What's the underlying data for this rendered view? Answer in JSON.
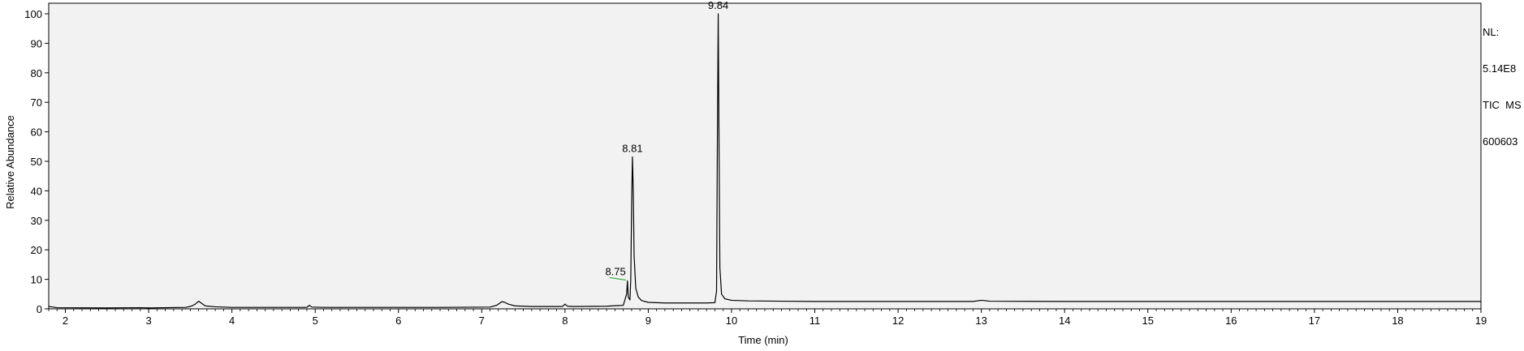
{
  "chart_data": {
    "type": "line",
    "title": "",
    "xlabel": "Time (min)",
    "ylabel": "Relative Abundance",
    "xlim": [
      1.8,
      19.0
    ],
    "ylim": [
      0,
      100
    ],
    "x_ticks": [
      2,
      3,
      4,
      5,
      6,
      7,
      8,
      9,
      10,
      11,
      12,
      13,
      14,
      15,
      16,
      17,
      18,
      19
    ],
    "y_ticks": [
      0,
      10,
      20,
      30,
      40,
      50,
      60,
      70,
      80,
      90,
      100
    ],
    "grid": false,
    "series": [
      {
        "x": [
          1.8,
          1.9,
          2.5,
          2.9,
          3.0,
          3.45,
          3.52,
          3.56,
          3.6,
          3.63,
          3.68,
          3.8,
          4.0,
          4.9,
          4.93,
          4.96,
          5.1,
          6.5,
          7.1,
          7.18,
          7.24,
          7.27,
          7.32,
          7.4,
          7.6,
          7.97,
          8.0,
          8.03,
          8.1,
          8.5,
          8.7,
          8.74,
          8.75,
          8.76,
          8.78,
          8.79,
          8.8,
          8.81,
          8.82,
          8.83,
          8.85,
          8.88,
          8.92,
          9.0,
          9.2,
          9.7,
          9.8,
          9.82,
          9.83,
          9.84,
          9.85,
          9.86,
          9.88,
          9.92,
          10.0,
          10.2,
          10.6,
          11.0,
          12.0,
          12.9,
          13.0,
          13.1,
          14.0,
          15.0,
          16.0,
          17.0,
          18.0,
          19.0
        ],
        "y": [
          0.8,
          0.4,
          0.3,
          0.4,
          0.3,
          0.5,
          1.0,
          1.6,
          2.6,
          2.0,
          1.0,
          0.7,
          0.5,
          0.5,
          1.2,
          0.6,
          0.5,
          0.5,
          0.6,
          1.2,
          2.4,
          2.3,
          1.6,
          1.0,
          0.8,
          0.8,
          1.6,
          0.9,
          0.8,
          0.9,
          1.2,
          5.0,
          9.5,
          4.0,
          3.0,
          10.0,
          35.0,
          51.5,
          40.0,
          18.0,
          7.0,
          4.0,
          2.8,
          2.2,
          2.0,
          2.0,
          2.1,
          6.0,
          57.0,
          100.0,
          56.0,
          14.0,
          5.0,
          3.4,
          2.9,
          2.7,
          2.6,
          2.5,
          2.5,
          2.5,
          2.9,
          2.6,
          2.5,
          2.5,
          2.5,
          2.5,
          2.5,
          2.5
        ]
      }
    ],
    "peak_labels": [
      {
        "x": 8.75,
        "y": 9.5,
        "label": "8.75"
      },
      {
        "x": 8.81,
        "y": 51.5,
        "label": "8.81"
      },
      {
        "x": 9.84,
        "y": 100,
        "label": "9.84"
      }
    ],
    "annotations": [
      "NL:",
      "5.14E8",
      "TIC  MS",
      "600603"
    ]
  }
}
